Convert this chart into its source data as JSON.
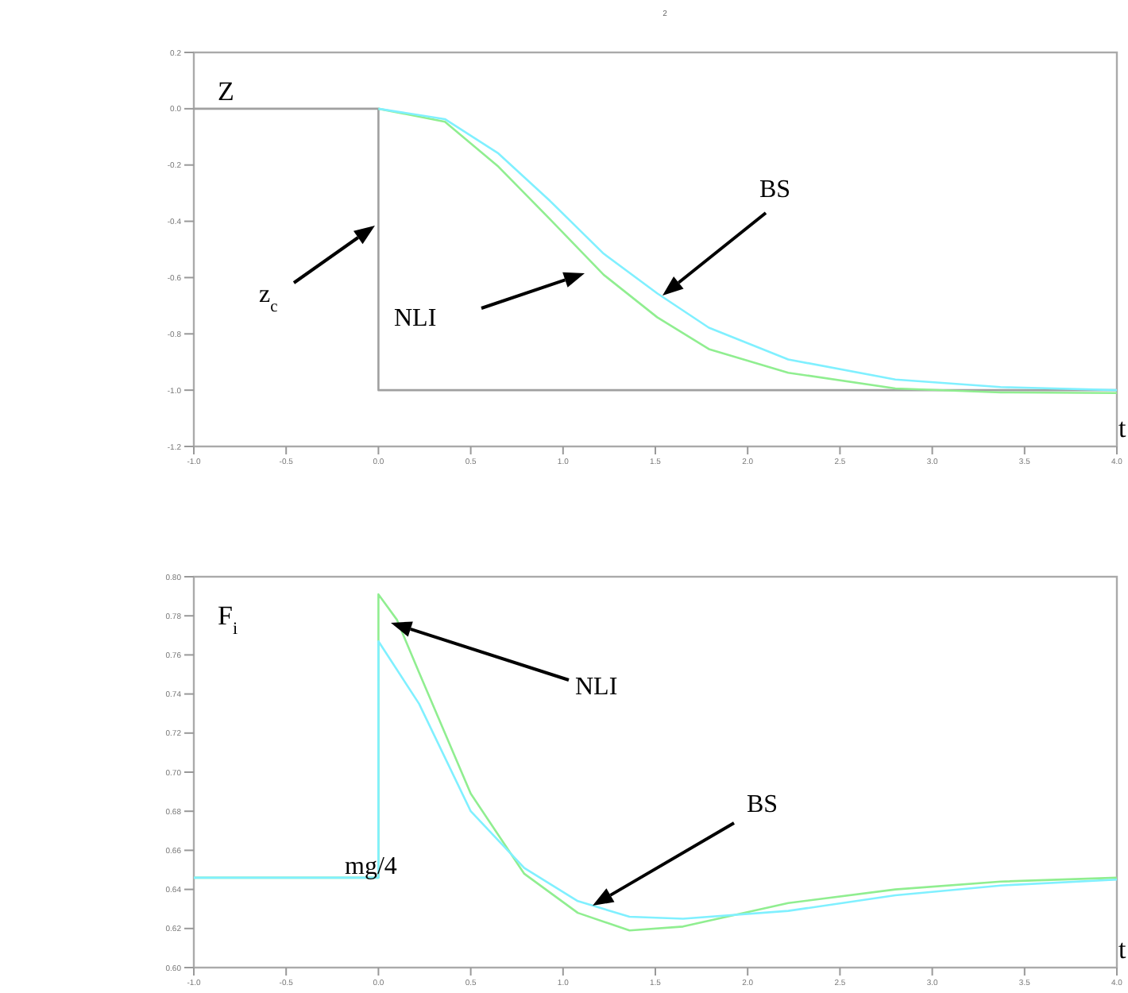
{
  "chart_data": [
    {
      "type": "line",
      "title": "2",
      "xlabel": "t",
      "ylabel": "Z",
      "xlim": [
        -1,
        4
      ],
      "ylim": [
        -1.2,
        0.2
      ],
      "xticks": [
        {
          "value": -1,
          "label": "-1.0"
        },
        {
          "value": -0.5,
          "label": "-0.5"
        },
        {
          "value": 0,
          "label": "0.0"
        },
        {
          "value": 0.5,
          "label": "0.5"
        },
        {
          "value": 1,
          "label": "1.0"
        },
        {
          "value": 1.5,
          "label": "1.5"
        },
        {
          "value": 2,
          "label": "2.0"
        },
        {
          "value": 2.5,
          "label": "2.5"
        },
        {
          "value": 3,
          "label": "3.0"
        },
        {
          "value": 3.5,
          "label": "3.5"
        },
        {
          "value": 4,
          "label": "4.0"
        }
      ],
      "yticks": [
        {
          "value": -1.2,
          "label": "-1.2"
        },
        {
          "value": -1,
          "label": "-1.0"
        },
        {
          "value": -0.8,
          "label": "-0.8"
        },
        {
          "value": -0.6,
          "label": "-0.6"
        },
        {
          "value": -0.4,
          "label": "-0.4"
        },
        {
          "value": -0.2,
          "label": "-0.2"
        },
        {
          "value": 0,
          "label": "0.0"
        },
        {
          "value": 0.2,
          "label": "0.2"
        }
      ],
      "grid": false,
      "marker": "none",
      "series": [
        {
          "color": "#a0a0a0",
          "x": [
            -1,
            0,
            0,
            4
          ],
          "values": [
            0,
            0,
            -1,
            -1
          ]
        },
        {
          "color": "#90ee90",
          "x": [
            0,
            0.36,
            0.65,
            0.93,
            1.22,
            1.51,
            1.79,
            2.22,
            2.8,
            3.37,
            4
          ],
          "values": [
            0,
            -0.046,
            -0.206,
            -0.393,
            -0.59,
            -0.741,
            -0.854,
            -0.938,
            -0.994,
            -1.008,
            -1.01
          ]
        },
        {
          "color": "#80f0ff",
          "x": [
            0,
            0.36,
            0.65,
            0.93,
            1.22,
            1.51,
            1.79,
            2.22,
            2.8,
            3.37,
            4
          ],
          "values": [
            0,
            -0.037,
            -0.159,
            -0.328,
            -0.515,
            -0.656,
            -0.778,
            -0.891,
            -0.962,
            -0.989,
            -1.0
          ]
        }
      ],
      "annotations": [
        "z$_{c}$",
        "NLI",
        "BS"
      ]
    },
    {
      "type": "line",
      "xlabel": "t",
      "ylabel": "F$_{i}$",
      "xlim": [
        -1,
        4
      ],
      "ylim": [
        0.6,
        0.8
      ],
      "xticks": [
        {
          "value": -1,
          "label": "-1.0"
        },
        {
          "value": -0.5,
          "label": "-0.5"
        },
        {
          "value": 0,
          "label": "0.0"
        },
        {
          "value": 0.5,
          "label": "0.5"
        },
        {
          "value": 1,
          "label": "1.0"
        },
        {
          "value": 1.5,
          "label": "1.5"
        },
        {
          "value": 2,
          "label": "2.0"
        },
        {
          "value": 2.5,
          "label": "2.5"
        },
        {
          "value": 3,
          "label": "3.0"
        },
        {
          "value": 3.5,
          "label": "3.5"
        },
        {
          "value": 4,
          "label": "4.0"
        }
      ],
      "yticks": [
        {
          "value": 0.6,
          "label": "0.60"
        },
        {
          "value": 0.62,
          "label": "0.62"
        },
        {
          "value": 0.64,
          "label": "0.64"
        },
        {
          "value": 0.66,
          "label": "0.66"
        },
        {
          "value": 0.68,
          "label": "0.68"
        },
        {
          "value": 0.7,
          "label": "0.70"
        },
        {
          "value": 0.72,
          "label": "0.72"
        },
        {
          "value": 0.74,
          "label": "0.74"
        },
        {
          "value": 0.76,
          "label": "0.76"
        },
        {
          "value": 0.78,
          "label": "0.78"
        },
        {
          "value": 0.8,
          "label": "0.80"
        }
      ],
      "grid": false,
      "marker": "none",
      "series": [
        {
          "color": "#90ee90",
          "x": [
            -1,
            0,
            0,
            0.1,
            0.22,
            0.5,
            0.79,
            1.08,
            1.36,
            1.65,
            2.22,
            2.8,
            3.37,
            4
          ],
          "values": [
            0.646,
            0.646,
            0.791,
            0.778,
            0.751,
            0.689,
            0.648,
            0.628,
            0.619,
            0.621,
            0.633,
            0.64,
            0.644,
            0.646
          ]
        },
        {
          "color": "#80f0ff",
          "x": [
            -1,
            0,
            0,
            0.22,
            0.5,
            0.79,
            1.08,
            1.36,
            1.65,
            2.22,
            2.8,
            3.37,
            4
          ],
          "values": [
            0.646,
            0.646,
            0.767,
            0.735,
            0.68,
            0.651,
            0.634,
            0.626,
            0.625,
            0.629,
            0.637,
            0.642,
            0.645
          ]
        }
      ],
      "annotations": [
        "NLI",
        "BS",
        "mg/4"
      ]
    }
  ]
}
